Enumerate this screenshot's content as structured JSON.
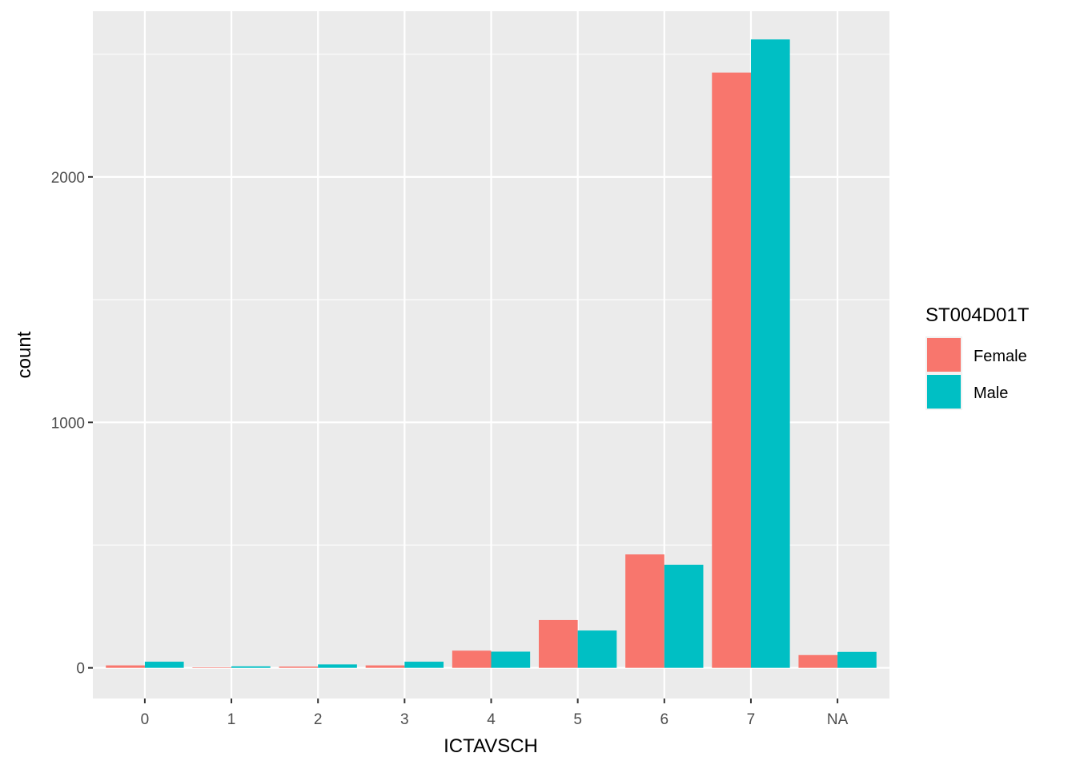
{
  "chart_data": {
    "type": "bar",
    "xlabel": "ICTAVSCH",
    "ylabel": "count",
    "categories": [
      "0",
      "1",
      "2",
      "3",
      "4",
      "5",
      "6",
      "7",
      "NA"
    ],
    "series": [
      {
        "name": "Female",
        "values": [
          10,
          2,
          5,
          10,
          70,
          195,
          462,
          2425,
          52
        ]
      },
      {
        "name": "Male",
        "values": [
          25,
          6,
          14,
          25,
          66,
          152,
          420,
          2560,
          65
        ]
      }
    ],
    "ylim": [
      -125,
      2675
    ],
    "yticks": [
      0,
      1000,
      2000
    ],
    "legend": {
      "title": "ST004D01T",
      "position": "right"
    },
    "colors": {
      "Female": "#F8766D",
      "Male": "#00BFC4",
      "panel": "#EBEBEB",
      "grid": "#FFFFFF"
    },
    "grid": true
  }
}
